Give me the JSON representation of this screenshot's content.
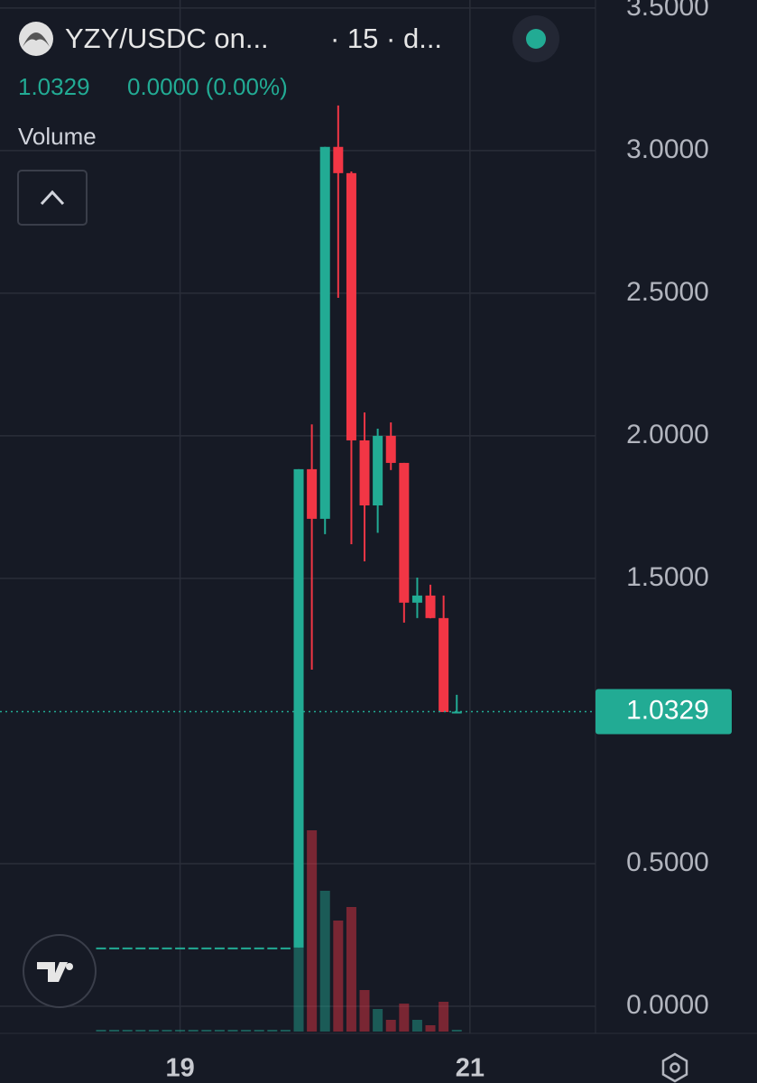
{
  "chart_data": {
    "type": "candlestick",
    "symbol": "YZY/USDC on...",
    "interval": "· 15 · d...",
    "last_price": 1.0329,
    "change": "0.0000 (0.00%)",
    "volume_label": "Volume",
    "up_color": "#22ab94",
    "down_color": "#f23645",
    "x": [
      8,
      9,
      10,
      11,
      12,
      13,
      14,
      15,
      16,
      17,
      18,
      19,
      20,
      21,
      22,
      23,
      24,
      25,
      26,
      27,
      28,
      29,
      30,
      31,
      32,
      33,
      34,
      35
    ],
    "open": [
      0.206,
      0.206,
      0.206,
      0.206,
      0.206,
      0.206,
      0.206,
      0.206,
      0.206,
      0.206,
      0.206,
      0.206,
      0.206,
      0.206,
      0.206,
      0.206,
      1.883,
      1.709,
      3.013,
      2.921,
      1.984,
      1.756,
      2.0,
      1.905,
      1.415,
      1.44,
      1.361,
      1.0316
    ],
    "high": [
      0.206,
      0.206,
      0.206,
      0.206,
      0.206,
      0.206,
      0.206,
      0.206,
      0.206,
      0.206,
      0.206,
      0.206,
      0.206,
      0.206,
      0.206,
      1.883,
      2.04,
      3.013,
      3.158,
      2.927,
      2.082,
      2.025,
      2.047,
      1.905,
      1.503,
      1.478,
      1.44,
      1.092
    ],
    "low": [
      0.206,
      0.206,
      0.206,
      0.206,
      0.206,
      0.206,
      0.206,
      0.206,
      0.206,
      0.206,
      0.206,
      0.206,
      0.206,
      0.206,
      0.206,
      0.206,
      1.18,
      1.655,
      2.484,
      1.62,
      1.56,
      1.66,
      1.88,
      1.345,
      1.361,
      1.36,
      1.0316,
      1.0316
    ],
    "close": [
      0.206,
      0.206,
      0.206,
      0.206,
      0.206,
      0.206,
      0.206,
      0.206,
      0.206,
      0.206,
      0.206,
      0.206,
      0.206,
      0.206,
      0.206,
      1.883,
      1.709,
      3.013,
      2.921,
      1.984,
      1.756,
      2.0,
      1.905,
      1.415,
      1.44,
      1.361,
      1.0316,
      1.0329
    ],
    "volume": [
      2,
      2,
      2,
      2,
      2,
      2,
      2,
      2,
      2,
      2,
      2,
      2,
      2,
      2,
      2,
      100,
      223,
      156,
      123,
      138,
      46,
      25,
      13,
      31,
      13,
      7,
      33,
      2
    ],
    "volume_ylim": [
      0,
      1143
    ],
    "xlim": [
      0.33,
      45.53
    ],
    "xticks": [
      {
        "value": 14,
        "label": "19"
      },
      {
        "value": 36,
        "label": "21"
      }
    ],
    "ylim": [
      -0.095,
      3.528
    ],
    "yticks": [
      {
        "value": 0,
        "label": "0.0000"
      },
      {
        "value": 0.5,
        "label": "0.5000"
      },
      {
        "value": 1.5,
        "label": "1.5000"
      },
      {
        "value": 2,
        "label": "2.0000"
      },
      {
        "value": 2.5,
        "label": "2.5000"
      },
      {
        "value": 3,
        "label": "3.0000"
      },
      {
        "value": 3.5,
        "label": "3.5000"
      }
    ],
    "grid": true
  }
}
